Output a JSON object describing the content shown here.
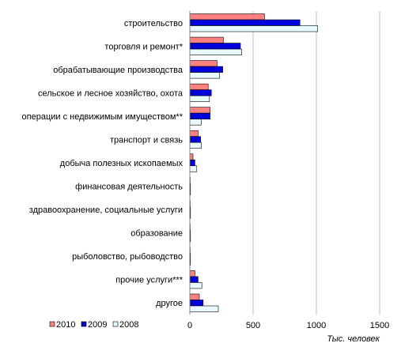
{
  "chart_data": {
    "type": "bar",
    "orientation": "horizontal",
    "categories": [
      "строительство",
      "торговля и ремонт*",
      "обрабатывающие производства",
      "сельское и лесное хозяйство, охота",
      "операции с недвижимым имуществом**",
      "транспорт и связь",
      "добыча полезных ископаемых",
      "финансовая деятельность",
      "здравоохранение, социальные услуги",
      "образование",
      "рыболовство, рыбоводство",
      "прочие услуги***",
      "другое"
    ],
    "series": [
      {
        "name": "2010",
        "color": "#ff8080",
        "values": [
          590,
          265,
          215,
          145,
          160,
          65,
          25,
          3,
          3,
          3,
          3,
          40,
          75
        ]
      },
      {
        "name": "2009",
        "color": "#0000dd",
        "values": [
          870,
          400,
          260,
          170,
          160,
          85,
          40,
          5,
          5,
          5,
          5,
          65,
          105
        ]
      },
      {
        "name": "2008",
        "color": "#e6faff",
        "values": [
          1010,
          410,
          235,
          155,
          90,
          90,
          55,
          5,
          5,
          5,
          5,
          95,
          225
        ]
      }
    ],
    "xlim": [
      0,
      1500
    ],
    "xticks": [
      "0",
      "500",
      "1000",
      "1500"
    ],
    "xlabel": "Тыс. человек",
    "grid": true,
    "legend_position": "bottom-left"
  }
}
